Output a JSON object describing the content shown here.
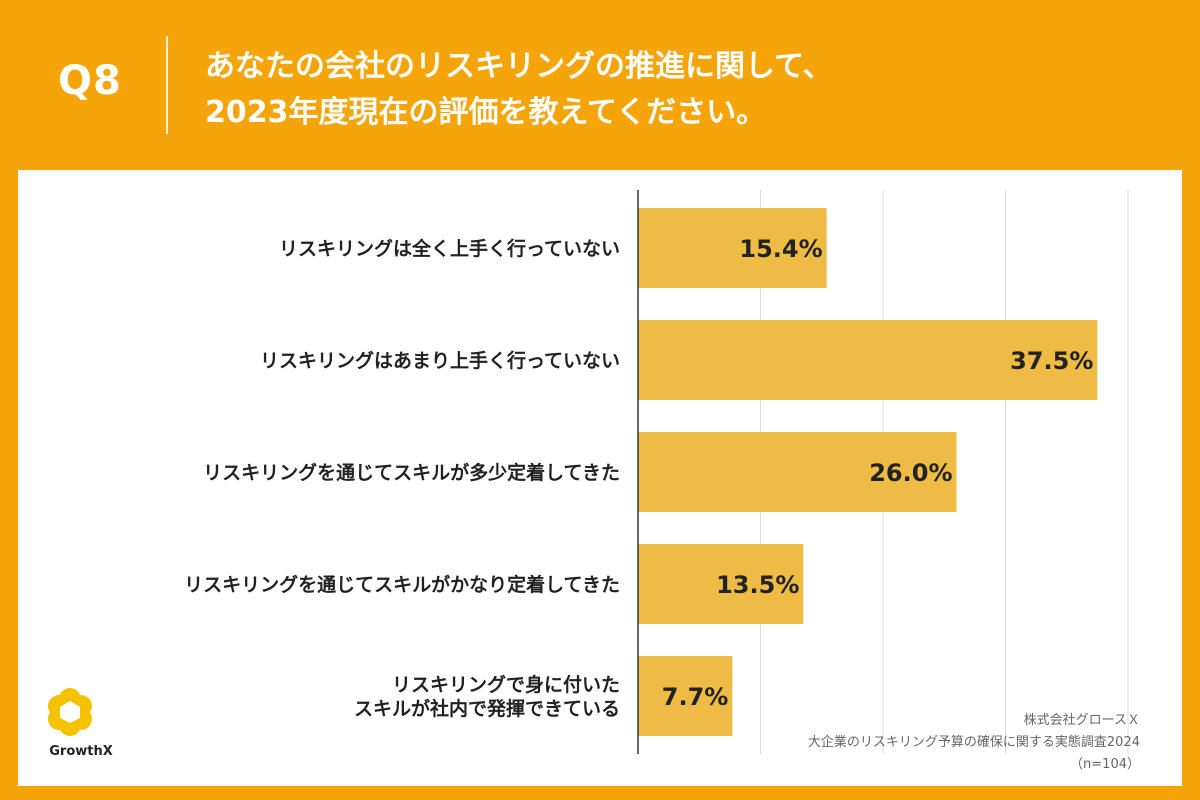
{
  "header": {
    "qnum": "Q8",
    "question_line1": "あなたの会社のリスキリングの推進に関して、",
    "question_line2": "2023年度現在の評価を教えてください。"
  },
  "source": {
    "company": "株式会社グロースＸ",
    "survey": "大企業のリスキリング予算の確保に関する実態調査2024",
    "sample": "（n=104）"
  },
  "logo": {
    "text": "GrowthX",
    "icon": "growthx-logo-icon"
  },
  "colors": {
    "background": "#F5A40A",
    "bar": "#EEBB44",
    "panel": "#FFFFFF",
    "grid": "#DDDDDD"
  },
  "chart_data": {
    "type": "bar",
    "orientation": "horizontal",
    "categories": [
      "リスキリングは全く上手く行っていない",
      "リスキリングはあまり上手く行っていない",
      "リスキリングを通じてスキルが多少定着してきた",
      "リスキリングを通じてスキルがかなり定着してきた",
      "リスキリングで身に付いた\nスキルが社内で発揮できている"
    ],
    "values": [
      15.4,
      37.5,
      26.0,
      13.5,
      7.7
    ],
    "value_labels": [
      "15.4%",
      "37.5%",
      "26.0%",
      "13.5%",
      "7.7%"
    ],
    "xlim": [
      0,
      40
    ],
    "grid": true
  }
}
